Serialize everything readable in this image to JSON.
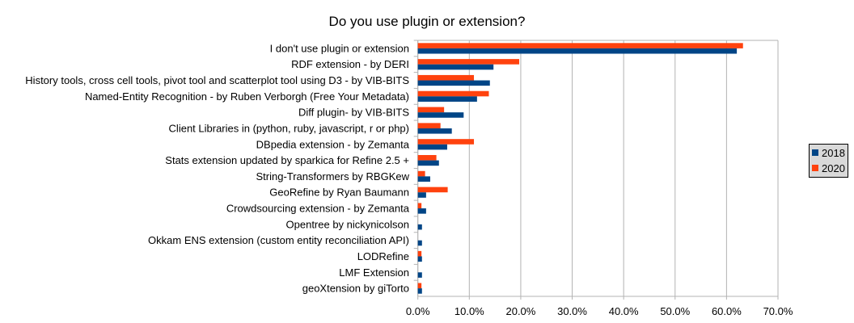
{
  "chart_data": {
    "type": "bar",
    "orientation": "horizontal",
    "title": "Do you use plugin or extension?",
    "categories": [
      "I don't use plugin or extension",
      "RDF extension - by DERI",
      "History tools, cross cell tools, pivot tool and scatterplot tool using D3 - by VIB-BITS",
      "Named-Entity Recognition - by Ruben Verborgh (Free Your Metadata)",
      "Diff plugin- by VIB-BITS",
      "Client Libraries in (python, ruby, javascript, r or php)",
      "DBpedia extension - by Zemanta",
      "Stats extension updated by sparkica for Refine 2.5 +",
      "String-Transformers by RBGKew",
      "GeoRefine by Ryan Baumann",
      "Crowdsourcing extension - by Zemanta",
      "Opentree by nickynicolson",
      "Okkam ENS extension (custom entity reconciliation API)",
      "LODRefine",
      "LMF Extension",
      "geoXtension by giTorto"
    ],
    "series": [
      {
        "name": "2018",
        "color": "#004586",
        "values": [
          62.0,
          14.7,
          14.0,
          11.5,
          8.9,
          6.6,
          5.7,
          4.1,
          2.4,
          1.6,
          1.6,
          0.8,
          0.8,
          0.8,
          0.8,
          0.8
        ]
      },
      {
        "name": "2020",
        "color": "#ff420e",
        "values": [
          63.2,
          19.7,
          10.9,
          13.8,
          5.1,
          4.4,
          10.9,
          3.6,
          1.4,
          5.8,
          0.7,
          0,
          0,
          0.7,
          0,
          0.7
        ]
      }
    ],
    "xlim": [
      0,
      70
    ],
    "xticks": [
      "0.0%",
      "10.0%",
      "20.0%",
      "30.0%",
      "40.0%",
      "50.0%",
      "60.0%",
      "70.0%"
    ],
    "grid": true,
    "legend": "right"
  }
}
